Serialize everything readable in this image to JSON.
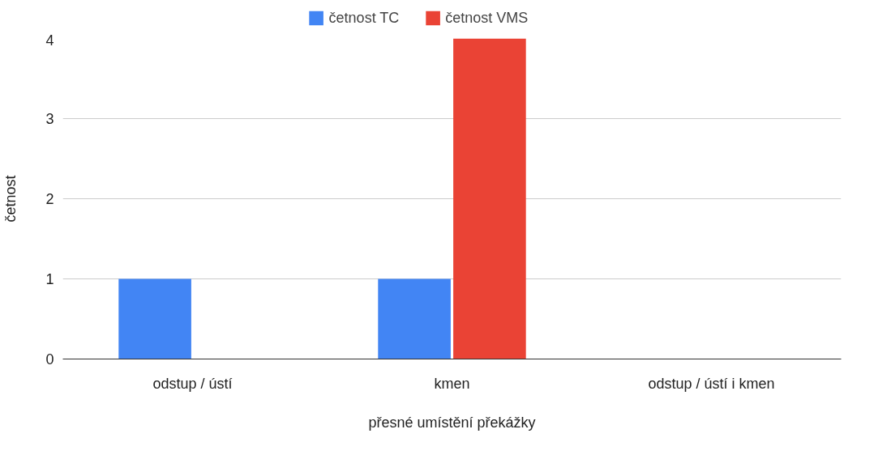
{
  "chart_data": {
    "type": "bar",
    "xlabel": "přesné umístění překážky",
    "ylabel": "četnost",
    "categories": [
      "odstup / ústí",
      "kmen",
      "odstup / ústí i kmen"
    ],
    "series": [
      {
        "name": "četnost TC",
        "color": "#4285f4",
        "values": [
          1,
          1,
          0
        ]
      },
      {
        "name": "četnost VMS",
        "color": "#ea4335",
        "values": [
          0,
          4,
          0
        ]
      }
    ],
    "ylim": [
      0,
      4
    ],
    "yticks": [
      0,
      1,
      2,
      3,
      4
    ],
    "grid": "y",
    "legend": "top"
  }
}
